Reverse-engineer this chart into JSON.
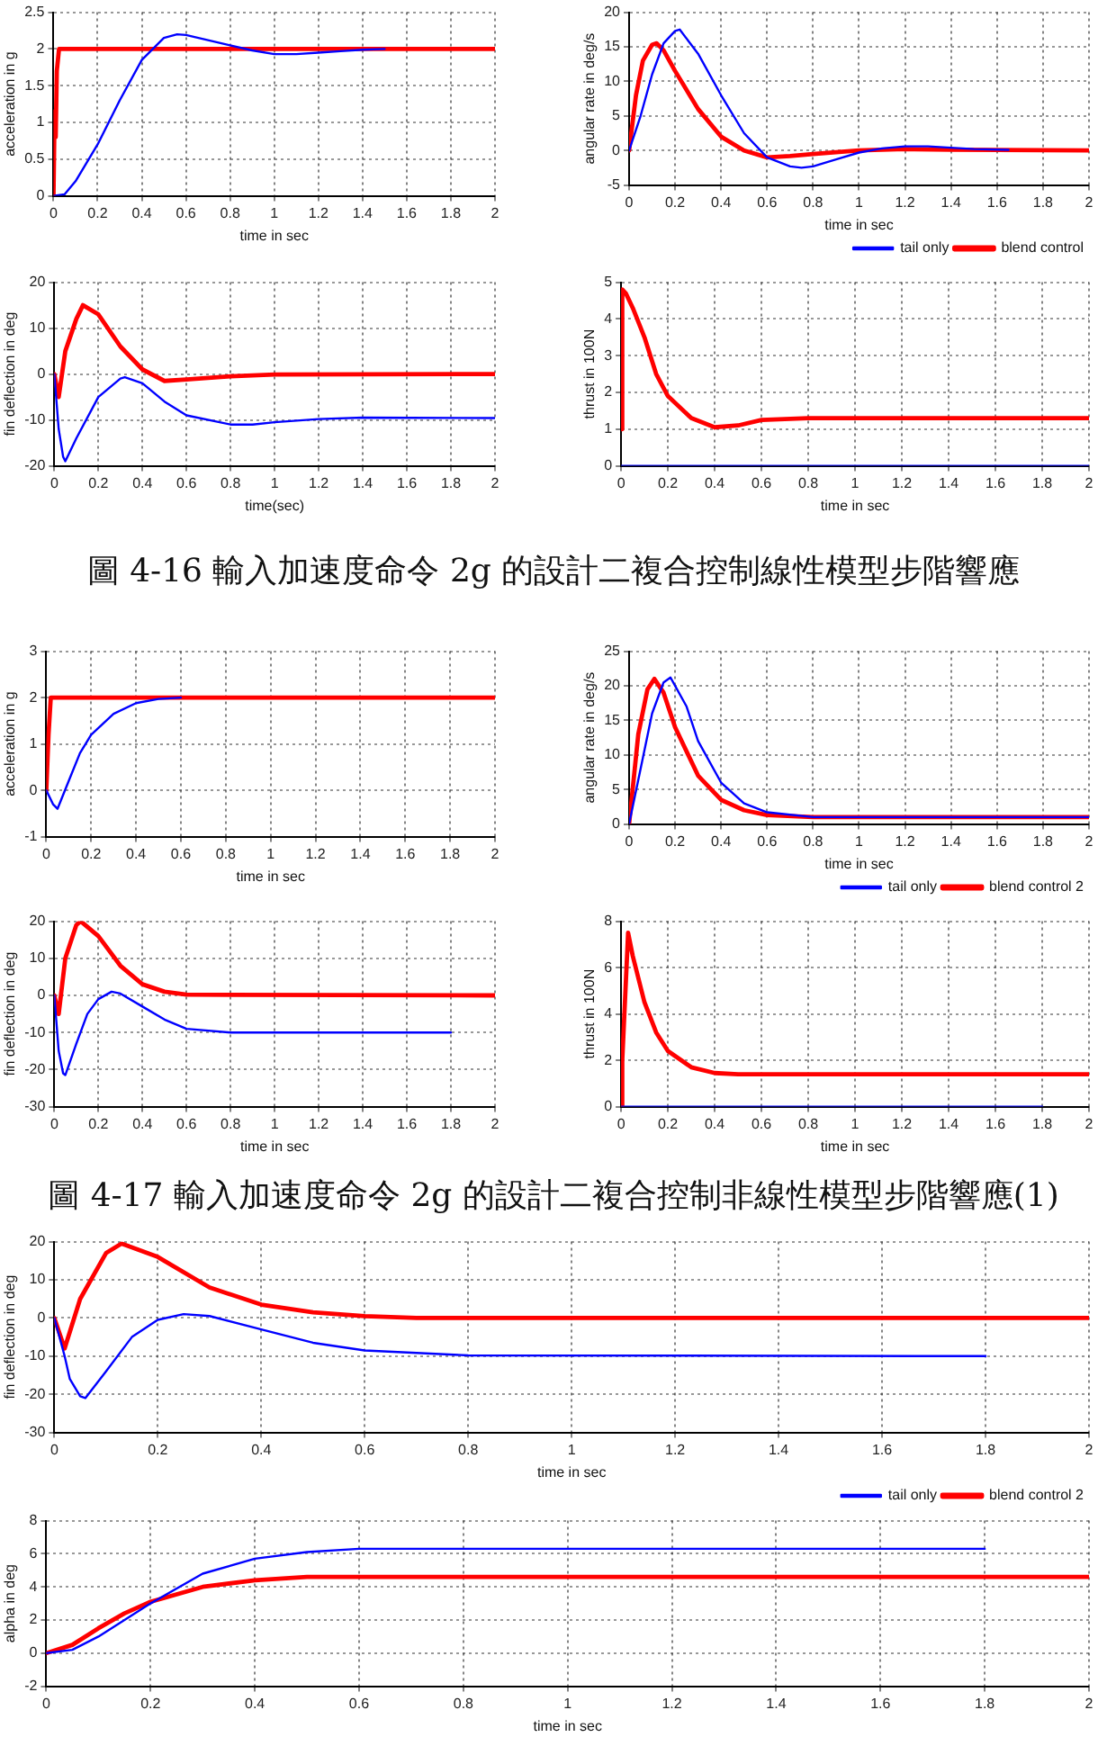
{
  "chart_data": [
    {
      "type": "line",
      "xlabel": "time in sec",
      "ylabel": "acceleration in g",
      "xlim": [
        0,
        2
      ],
      "xticks": [
        0,
        0.2,
        0.4,
        0.6,
        0.8,
        1,
        1.2,
        1.4,
        1.6,
        1.8,
        2
      ],
      "ylim": [
        0,
        2.5
      ],
      "yticks": [
        0,
        0.5,
        1,
        1.5,
        2,
        2.5
      ],
      "grid": true,
      "legend": false,
      "marker": "none",
      "line_style": "solid",
      "series": [
        {
          "color": "#0000ff",
          "x": [
            0,
            0.05,
            0.1,
            0.2,
            0.3,
            0.4,
            0.5,
            0.56,
            0.6,
            0.7,
            0.8,
            0.9,
            1,
            1.1,
            1.2,
            1.3,
            1.4,
            1.5
          ],
          "values": [
            0,
            0.02,
            0.2,
            0.7,
            1.3,
            1.85,
            2.15,
            2.2,
            2.19,
            2.12,
            2.05,
            1.98,
            1.93,
            1.93,
            1.95,
            1.97,
            1.99,
            2
          ]
        },
        {
          "color": "#ff0000",
          "x": [
            0,
            0.005,
            0.01,
            0.015,
            0.025,
            2
          ],
          "values": [
            0,
            1.15,
            0.8,
            1.7,
            2,
            2
          ]
        }
      ]
    },
    {
      "type": "line",
      "xlabel": "time in sec",
      "ylabel": "angular rate in deg/s",
      "xlim": [
        0,
        2
      ],
      "xticks": [
        0,
        0.2,
        0.4,
        0.6,
        0.8,
        1,
        1.2,
        1.4,
        1.6,
        1.8,
        2
      ],
      "ylim": [
        -5,
        20
      ],
      "yticks": [
        -5,
        0,
        5,
        10,
        15,
        20
      ],
      "grid": true,
      "legend": "bottom right",
      "marker": "none",
      "line_style": "solid",
      "series": [
        {
          "name": "tail only",
          "color": "#0000ff",
          "x": [
            0,
            0.05,
            0.1,
            0.15,
            0.2,
            0.22,
            0.3,
            0.4,
            0.5,
            0.6,
            0.7,
            0.75,
            0.8,
            0.9,
            1,
            1.1,
            1.2,
            1.3,
            1.4,
            1.5,
            1.65
          ],
          "values": [
            0,
            5,
            11,
            15.5,
            17.3,
            17.5,
            14,
            8,
            2.5,
            -1,
            -2.3,
            -2.5,
            -2.3,
            -1.3,
            -0.3,
            0.3,
            0.6,
            0.6,
            0.4,
            0.2,
            0.1
          ]
        },
        {
          "name": "blend control",
          "color": "#ff0000",
          "x": [
            0,
            0.03,
            0.06,
            0.1,
            0.12,
            0.15,
            0.2,
            0.3,
            0.4,
            0.5,
            0.6,
            0.7,
            0.8,
            1,
            1.2,
            1.4,
            2
          ],
          "values": [
            0,
            8,
            13,
            15.3,
            15.5,
            14.5,
            11.5,
            6,
            2,
            0,
            -1,
            -0.8,
            -0.5,
            0,
            0.2,
            0.1,
            0
          ]
        }
      ]
    },
    {
      "type": "line",
      "xlabel": "time(sec)",
      "ylabel": "fin deflection in deg",
      "xlim": [
        0,
        2
      ],
      "xticks": [
        0,
        0.2,
        0.4,
        0.6,
        0.8,
        1,
        1.2,
        1.4,
        1.6,
        1.8,
        2
      ],
      "ylim": [
        -20,
        20
      ],
      "yticks": [
        -20,
        -10,
        0,
        10,
        20
      ],
      "grid": true,
      "legend": false,
      "marker": "none",
      "line_style": "solid",
      "series": [
        {
          "color": "#0000ff",
          "x": [
            0,
            0.02,
            0.04,
            0.05,
            0.1,
            0.2,
            0.3,
            0.32,
            0.4,
            0.5,
            0.6,
            0.8,
            0.9,
            1,
            1.2,
            1.4,
            2
          ],
          "values": [
            0,
            -12,
            -18,
            -19,
            -14,
            -5,
            -1,
            -0.7,
            -2,
            -6,
            -9,
            -11,
            -11,
            -10.5,
            -9.8,
            -9.5,
            -9.6
          ]
        },
        {
          "color": "#ff0000",
          "x": [
            0,
            0.02,
            0.05,
            0.1,
            0.13,
            0.2,
            0.3,
            0.4,
            0.5,
            0.6,
            0.8,
            1,
            2
          ],
          "values": [
            0,
            -5,
            5,
            12,
            15,
            13,
            6,
            1,
            -1.5,
            -1.2,
            -0.5,
            -0.1,
            0
          ]
        }
      ]
    },
    {
      "type": "line",
      "xlabel": "time in sec",
      "ylabel": "thrust in 100N",
      "xlim": [
        0,
        2
      ],
      "xticks": [
        0,
        0.2,
        0.4,
        0.6,
        0.8,
        1,
        1.2,
        1.4,
        1.6,
        1.8,
        2
      ],
      "ylim": [
        0,
        5
      ],
      "yticks": [
        0,
        1,
        2,
        3,
        4,
        5
      ],
      "grid": true,
      "legend": false,
      "marker": "none",
      "line_style": "solid",
      "annotations": [
        "圖 4-16 輸入加速度命令 2g 的設計二複合控制線性模型步階響應"
      ],
      "series": [
        {
          "color": "#0000ff",
          "x": [
            0,
            2
          ],
          "values": [
            0,
            0
          ]
        },
        {
          "color": "#ff0000",
          "x": [
            0,
            0.005,
            0.02,
            0.05,
            0.1,
            0.15,
            0.2,
            0.3,
            0.4,
            0.5,
            0.6,
            0.8,
            1,
            1.2,
            2
          ],
          "values": [
            1,
            4.8,
            4.7,
            4.3,
            3.5,
            2.5,
            1.9,
            1.3,
            1.05,
            1.1,
            1.25,
            1.3,
            1.3,
            1.3,
            1.3
          ]
        }
      ]
    },
    {
      "type": "line",
      "xlabel": "time in sec",
      "ylabel": "acceleration in g",
      "xlim": [
        0,
        2
      ],
      "xticks": [
        0,
        0.2,
        0.4,
        0.6,
        0.8,
        1,
        1.2,
        1.4,
        1.6,
        1.8,
        2
      ],
      "ylim": [
        -1,
        3
      ],
      "yticks": [
        -1,
        0,
        1,
        2,
        3
      ],
      "grid": true,
      "legend": false,
      "marker": "none",
      "line_style": "solid",
      "series": [
        {
          "color": "#0000ff",
          "x": [
            0,
            0.03,
            0.05,
            0.1,
            0.15,
            0.2,
            0.3,
            0.4,
            0.5,
            0.6
          ],
          "values": [
            0,
            -0.3,
            -0.4,
            0.2,
            0.8,
            1.2,
            1.65,
            1.88,
            1.97,
            2
          ]
        },
        {
          "color": "#ff0000",
          "x": [
            0,
            0.01,
            0.02,
            2
          ],
          "values": [
            0,
            1.2,
            2,
            2
          ]
        }
      ]
    },
    {
      "type": "line",
      "xlabel": "time in sec",
      "ylabel": "angular rate in deg/s",
      "xlim": [
        0,
        2
      ],
      "xticks": [
        0,
        0.2,
        0.4,
        0.6,
        0.8,
        1,
        1.2,
        1.4,
        1.6,
        1.8,
        2
      ],
      "ylim": [
        0,
        25
      ],
      "yticks": [
        0,
        5,
        10,
        15,
        20,
        25
      ],
      "grid": true,
      "legend": "bottom right",
      "marker": "none",
      "line_style": "solid",
      "series": [
        {
          "name": "tail only",
          "color": "#0000ff",
          "x": [
            0,
            0.05,
            0.1,
            0.15,
            0.18,
            0.25,
            0.3,
            0.4,
            0.5,
            0.6,
            0.8,
            2
          ],
          "values": [
            0,
            8,
            16,
            20.5,
            21.2,
            17,
            12,
            6,
            3,
            1.7,
            1,
            1
          ]
        },
        {
          "name": "blend control 2",
          "color": "#ff0000",
          "x": [
            0,
            0.04,
            0.08,
            0.11,
            0.15,
            0.2,
            0.3,
            0.4,
            0.5,
            0.6,
            0.8,
            2
          ],
          "values": [
            0,
            13,
            19.5,
            21,
            19,
            14,
            7,
            3.5,
            2,
            1.3,
            1,
            1
          ]
        }
      ]
    },
    {
      "type": "line",
      "xlabel": "time in sec",
      "ylabel": "fin deflection in deg",
      "xlim": [
        0,
        2
      ],
      "xticks": [
        0,
        0.2,
        0.4,
        0.6,
        0.8,
        1,
        1.2,
        1.4,
        1.6,
        1.8,
        2
      ],
      "ylim": [
        -30,
        20
      ],
      "yticks": [
        -30,
        -20,
        -10,
        0,
        10,
        20
      ],
      "grid": true,
      "legend": false,
      "marker": "none",
      "line_style": "solid",
      "series": [
        {
          "color": "#0000ff",
          "x": [
            0,
            0.02,
            0.04,
            0.05,
            0.1,
            0.15,
            0.2,
            0.26,
            0.3,
            0.4,
            0.5,
            0.6,
            0.8,
            1.8
          ],
          "values": [
            0,
            -15,
            -21,
            -21.5,
            -13,
            -5,
            -1,
            1,
            0.5,
            -3,
            -6.5,
            -9,
            -10,
            -10
          ]
        },
        {
          "color": "#ff0000",
          "x": [
            0,
            0.02,
            0.05,
            0.1,
            0.12,
            0.2,
            0.3,
            0.4,
            0.5,
            0.6,
            2
          ],
          "values": [
            0,
            -5,
            10,
            19,
            20,
            16,
            8,
            3,
            1,
            0.2,
            0
          ]
        }
      ]
    },
    {
      "type": "line",
      "xlabel": "time in sec",
      "ylabel": "thrust in 100N",
      "xlim": [
        0,
        2
      ],
      "xticks": [
        0,
        0.2,
        0.4,
        0.6,
        0.8,
        1,
        1.2,
        1.4,
        1.6,
        1.8,
        2
      ],
      "ylim": [
        0,
        8
      ],
      "yticks": [
        0,
        2,
        4,
        6,
        8
      ],
      "grid": true,
      "legend": false,
      "marker": "none",
      "line_style": "solid",
      "annotations": [
        "圖 4-17 輸入加速度命令 2g 的設計二複合控制非線性模型步階響應(1)"
      ],
      "series": [
        {
          "color": "#0000ff",
          "x": [
            0,
            1.8
          ],
          "values": [
            0,
            0
          ]
        },
        {
          "color": "#ff0000",
          "x": [
            0,
            0.005,
            0.03,
            0.05,
            0.1,
            0.15,
            0.2,
            0.3,
            0.4,
            0.5,
            2
          ],
          "values": [
            0,
            2,
            7.5,
            6.5,
            4.5,
            3.2,
            2.4,
            1.7,
            1.45,
            1.4,
            1.4
          ]
        }
      ]
    },
    {
      "type": "line",
      "xlabel": "time in sec",
      "ylabel": "fin deflection in deg",
      "xlim": [
        0,
        2
      ],
      "xticks": [
        0,
        0.2,
        0.4,
        0.6,
        0.8,
        1,
        1.2,
        1.4,
        1.6,
        1.8,
        2
      ],
      "ylim": [
        -30,
        20
      ],
      "yticks": [
        -30,
        -20,
        -10,
        0,
        10,
        20
      ],
      "grid": true,
      "legend": "bottom right",
      "marker": "none",
      "line_style": "solid",
      "series": [
        {
          "name": "tail only",
          "color": "#0000ff",
          "x": [
            0,
            0.02,
            0.03,
            0.05,
            0.06,
            0.1,
            0.15,
            0.2,
            0.25,
            0.3,
            0.4,
            0.5,
            0.6,
            0.8,
            1.8
          ],
          "values": [
            0,
            -10,
            -16,
            -20.5,
            -21,
            -14,
            -5,
            -0.5,
            1,
            0.5,
            -3,
            -6.5,
            -8.5,
            -9.8,
            -10
          ]
        },
        {
          "name": "blend control 2",
          "color": "#ff0000",
          "x": [
            0,
            0.02,
            0.05,
            0.1,
            0.13,
            0.2,
            0.3,
            0.4,
            0.5,
            0.6,
            0.7,
            2
          ],
          "values": [
            0,
            -8,
            5,
            17,
            19.5,
            16,
            8,
            3.5,
            1.5,
            0.5,
            0,
            0
          ]
        }
      ]
    },
    {
      "type": "line",
      "xlabel": "time in sec",
      "ylabel": "alpha in deg",
      "xlim": [
        0,
        2
      ],
      "xticks": [
        0,
        0.2,
        0.4,
        0.6,
        0.8,
        1,
        1.2,
        1.4,
        1.6,
        1.8,
        2
      ],
      "ylim": [
        -2,
        8
      ],
      "yticks": [
        -2,
        0,
        2,
        4,
        6,
        8
      ],
      "grid": true,
      "legend": false,
      "marker": "none",
      "line_style": "solid",
      "series": [
        {
          "color": "#0000ff",
          "x": [
            0,
            0.05,
            0.1,
            0.15,
            0.2,
            0.3,
            0.4,
            0.5,
            0.6,
            1.8
          ],
          "values": [
            0,
            0.2,
            1,
            2,
            3,
            4.8,
            5.7,
            6.1,
            6.3,
            6.3
          ]
        },
        {
          "color": "#ff0000",
          "x": [
            0,
            0.05,
            0.1,
            0.15,
            0.2,
            0.3,
            0.4,
            0.5,
            0.6,
            2
          ],
          "values": [
            0,
            0.5,
            1.5,
            2.4,
            3.1,
            4,
            4.4,
            4.6,
            4.6,
            4.6
          ]
        }
      ]
    }
  ]
}
